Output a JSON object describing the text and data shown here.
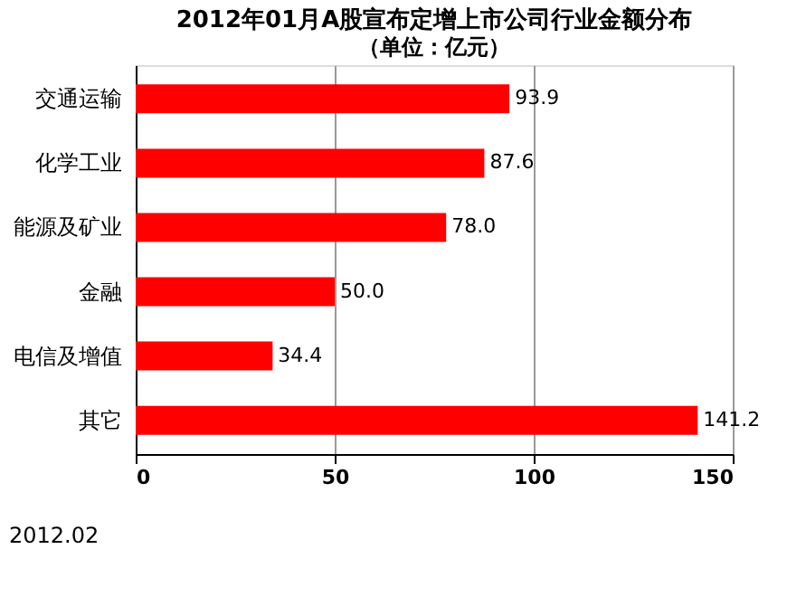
{
  "chart_data": {
    "type": "bar",
    "orientation": "horizontal",
    "title": "2012年01月A股宣布定增上市公司行业金额分布",
    "subtitle": "（单位：亿元）",
    "categories": [
      "交通运输",
      "化学工业",
      "能源及矿业",
      "金融",
      "电信及增值",
      "其它"
    ],
    "values": [
      93.9,
      87.6,
      78.0,
      50.0,
      34.4,
      141.2
    ],
    "value_labels": [
      "93.9",
      "87.6",
      "78.0",
      "50.0",
      "34.4",
      "141.2"
    ],
    "color": "#ff0000",
    "xlim": [
      0,
      150
    ],
    "xticks": [
      0,
      50,
      100,
      150
    ],
    "grid": "x",
    "annotations": [
      "2012.02"
    ]
  }
}
